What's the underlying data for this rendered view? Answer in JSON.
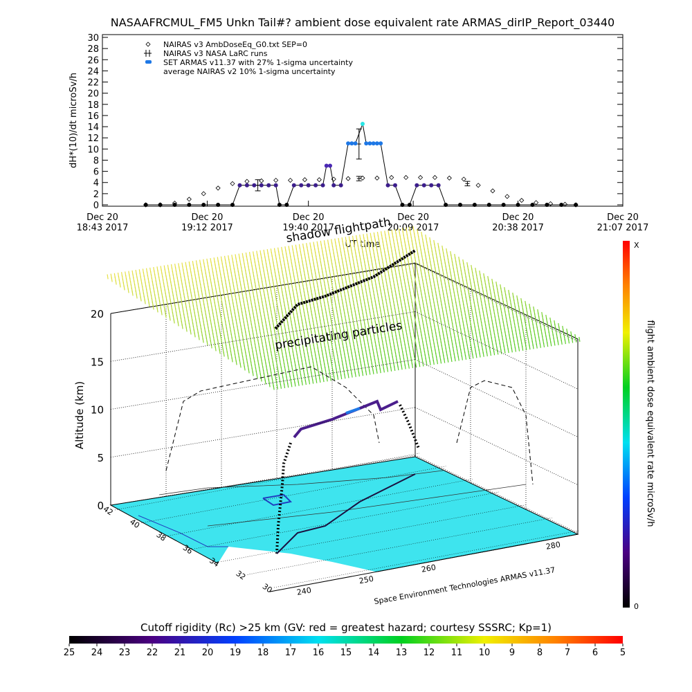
{
  "chart_data": {
    "type": "line",
    "title": "NASAAFRCMUL_FM5 Unkn Tail#? ambient dose equivalent rate ARMAS_dirIP_Report_03440",
    "ylabel": "dH*(10)/dt microSv/h",
    "xlabel": "UT time",
    "xlim": [
      "2017-12-20 18:43",
      "2017-12-20 21:07"
    ],
    "xticks": [
      {
        "value": "2017-12-20 18:43",
        "label": "Dec 20\n18:43 2017"
      },
      {
        "value": "2017-12-20 19:12",
        "label": "Dec 20\n19:12 2017"
      },
      {
        "value": "2017-12-20 19:40",
        "label": "Dec 20\n19:40 2017"
      },
      {
        "value": "2017-12-20 20:09",
        "label": "Dec 20\n20:09 2017"
      },
      {
        "value": "2017-12-20 20:38",
        "label": "Dec 20\n20:38 2017"
      },
      {
        "value": "2017-12-20 21:07",
        "label": "Dec 20\n21:07 2017"
      }
    ],
    "ylim": [
      0,
      30
    ],
    "yticks": [
      0,
      2,
      4,
      6,
      8,
      10,
      12,
      14,
      16,
      18,
      20,
      22,
      24,
      26,
      28,
      30
    ],
    "series": [
      {
        "name": "NAIRAS v3 AmbDoseEq_G0.txt SEP=0",
        "marker": "diamond",
        "color": "#000000",
        "x": [
          "2017-12-20 18:55",
          "2017-12-20 18:59",
          "2017-12-20 19:03",
          "2017-12-20 19:07",
          "2017-12-20 19:11",
          "2017-12-20 19:15",
          "2017-12-20 19:19",
          "2017-12-20 19:23",
          "2017-12-20 19:27",
          "2017-12-20 19:31",
          "2017-12-20 19:35",
          "2017-12-20 19:39",
          "2017-12-20 19:43",
          "2017-12-20 19:47",
          "2017-12-20 19:51",
          "2017-12-20 19:55",
          "2017-12-20 19:59",
          "2017-12-20 20:03",
          "2017-12-20 20:07",
          "2017-12-20 20:11",
          "2017-12-20 20:15",
          "2017-12-20 20:19",
          "2017-12-20 20:23",
          "2017-12-20 20:27",
          "2017-12-20 20:31",
          "2017-12-20 20:35",
          "2017-12-20 20:39",
          "2017-12-20 20:43",
          "2017-12-20 20:47",
          "2017-12-20 20:51",
          "2017-12-20 20:54"
        ],
        "values": [
          0,
          0,
          0.3,
          1,
          2,
          3,
          3.8,
          4.2,
          4.3,
          4.4,
          4.4,
          4.5,
          4.5,
          4.6,
          4.7,
          4.8,
          4.8,
          4.9,
          4.9,
          4.9,
          4.9,
          4.8,
          4.6,
          3.5,
          2.5,
          1.5,
          0.8,
          0.4,
          0.2,
          0.1,
          0
        ]
      },
      {
        "name": "NAIRAS v3 NASA LaRC runs",
        "marker": "errorbar",
        "color": "#000000",
        "x": [
          "2017-12-20 19:26",
          "2017-12-20 19:54",
          "2017-12-20 19:54",
          "2017-12-20 20:24"
        ],
        "values": [
          3.5,
          4.7,
          10.9,
          3.8
        ],
        "errors": [
          1,
          0.4,
          2.7,
          0.4
        ]
      },
      {
        "name": "SET ARMAS v11.37 with 27% 1-sigma uncertainty",
        "marker": "dot",
        "color": "#1e78e6",
        "x": [
          "2017-12-20 18:55",
          "2017-12-20 18:59",
          "2017-12-20 19:03",
          "2017-12-20 19:07",
          "2017-12-20 19:11",
          "2017-12-20 19:15",
          "2017-12-20 19:19",
          "2017-12-20 19:21",
          "2017-12-20 19:23",
          "2017-12-20 19:25",
          "2017-12-20 19:27",
          "2017-12-20 19:29",
          "2017-12-20 19:31",
          "2017-12-20 19:32",
          "2017-12-20 19:34",
          "2017-12-20 19:36",
          "2017-12-20 19:38",
          "2017-12-20 19:40",
          "2017-12-20 19:42",
          "2017-12-20 19:44",
          "2017-12-20 19:45",
          "2017-12-20 19:46",
          "2017-12-20 19:47",
          "2017-12-20 19:49",
          "2017-12-20 19:51",
          "2017-12-20 19:52",
          "2017-12-20 19:53",
          "2017-12-20 19:55",
          "2017-12-20 19:56",
          "2017-12-20 19:57",
          "2017-12-20 19:58",
          "2017-12-20 19:59",
          "2017-12-20 20:00",
          "2017-12-20 20:02",
          "2017-12-20 20:04",
          "2017-12-20 20:06",
          "2017-12-20 20:08",
          "2017-12-20 20:10",
          "2017-12-20 20:12",
          "2017-12-20 20:14",
          "2017-12-20 20:16",
          "2017-12-20 20:18",
          "2017-12-20 20:22",
          "2017-12-20 20:26",
          "2017-12-20 20:30",
          "2017-12-20 20:34",
          "2017-12-20 20:38",
          "2017-12-20 20:42",
          "2017-12-20 20:46",
          "2017-12-20 20:50",
          "2017-12-20 20:54"
        ],
        "values": [
          0,
          0,
          0,
          0,
          0,
          0,
          0,
          3.5,
          3.5,
          3.5,
          3.5,
          3.5,
          3.5,
          0,
          0,
          3.5,
          3.5,
          3.5,
          3.5,
          3.5,
          7,
          7,
          3.5,
          3.5,
          11,
          11,
          11,
          14.5,
          11,
          11,
          11,
          11,
          11,
          3.5,
          3.5,
          0,
          0,
          3.5,
          3.5,
          3.5,
          3.5,
          0,
          0,
          0,
          0,
          0,
          0,
          0,
          0,
          0,
          0
        ],
        "point_colors": [
          "#000000",
          "#000000",
          "#000000",
          "#000000",
          "#000000",
          "#000000",
          "#000000",
          "#3c1e8c",
          "#3c1e8c",
          "#3c1e8c",
          "#3c1e8c",
          "#3c1e8c",
          "#3c1e8c",
          "#000000",
          "#000000",
          "#3c1e8c",
          "#3c1e8c",
          "#3c1e8c",
          "#3c1e8c",
          "#3c1e8c",
          "#4a28b4",
          "#4a28b4",
          "#3c1e8c",
          "#3c1e8c",
          "#1e78e6",
          "#1e78e6",
          "#1e78e6",
          "#28e6e6",
          "#1e78e6",
          "#1e78e6",
          "#1e78e6",
          "#1e78e6",
          "#1e78e6",
          "#3c1e8c",
          "#3c1e8c",
          "#000000",
          "#000000",
          "#3c1e8c",
          "#3c1e8c",
          "#3c1e8c",
          "#3c1e8c",
          "#000000",
          "#000000",
          "#000000",
          "#000000",
          "#000000",
          "#000000",
          "#000000",
          "#000000",
          "#000000",
          "#000000"
        ]
      }
    ],
    "notes": [
      "average NAIRAS v2 10% 1-sigma uncertainty"
    ]
  },
  "scene": {
    "shadow_label": "shadow flightpath",
    "layer_label": "precipitating particles",
    "credit": "Space Environment Technologies ARMAS v11.37",
    "zlabel": "Altitude (km)",
    "zlim": [
      0,
      20
    ],
    "zticks": [
      0,
      5,
      10,
      15,
      20
    ],
    "lat_lim": [
      42,
      30
    ],
    "lat_ticks": [
      42,
      40,
      38,
      36,
      34,
      32,
      30
    ],
    "lon_lim": [
      240,
      280
    ],
    "lon_ticks": [
      240,
      250,
      260,
      280
    ]
  },
  "dose_colorbar": {
    "label": "flight ambient dose equivalent rate microSv/h",
    "top": "X",
    "bottom": "0"
  },
  "rigidity_colorbar": {
    "label": "Cutoff rigidity (Rc) >25 km (GV: red = greatest hazard; courtesy SSSRC; Kp=1)",
    "lim": [
      25,
      5
    ],
    "ticks": [
      25,
      24,
      23,
      22,
      21,
      20,
      19,
      18,
      17,
      16,
      15,
      14,
      13,
      12,
      11,
      10,
      9,
      8,
      7,
      6,
      5
    ]
  }
}
